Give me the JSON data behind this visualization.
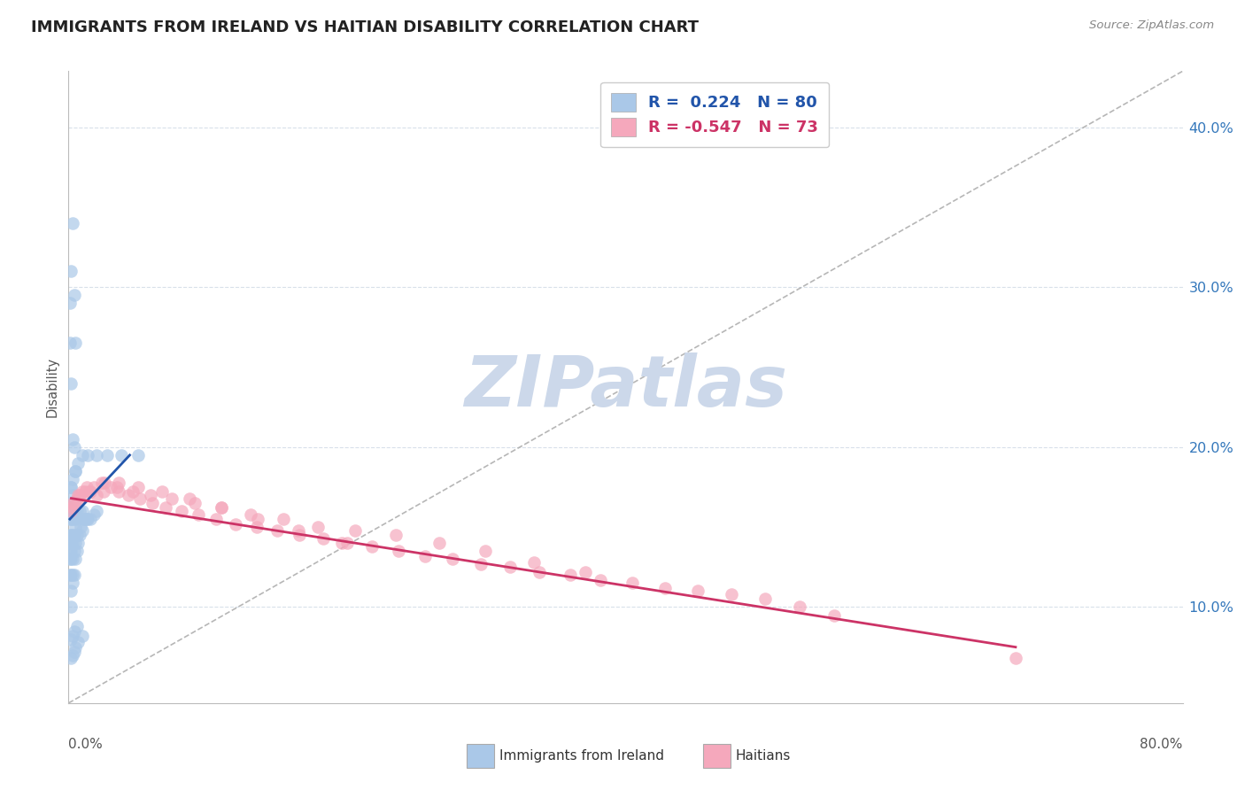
{
  "title": "IMMIGRANTS FROM IRELAND VS HAITIAN DISABILITY CORRELATION CHART",
  "source": "Source: ZipAtlas.com",
  "ylabel": "Disability",
  "xlim": [
    0.0,
    0.8
  ],
  "ylim": [
    0.04,
    0.435
  ],
  "yticks": [
    0.1,
    0.2,
    0.3,
    0.4
  ],
  "ytick_labels": [
    "10.0%",
    "20.0%",
    "30.0%",
    "40.0%"
  ],
  "xtick_left_label": "0.0%",
  "xtick_right_label": "80.0%",
  "ireland_R": 0.224,
  "ireland_N": 80,
  "haitian_R": -0.547,
  "haitian_N": 73,
  "ireland_color": "#aac8e8",
  "haitian_color": "#f5a8bc",
  "ireland_line_color": "#2255aa",
  "haitian_line_color": "#cc3366",
  "ref_line_color": "#aaaaaa",
  "watermark_color": "#ccd8ea",
  "background_color": "#ffffff",
  "grid_color": "#d8e0ea",
  "legend_label_ireland": "R =  0.224   N = 80",
  "legend_label_haitian": "R = -0.547   N = 73",
  "bottom_legend_ireland": "Immigrants from Ireland",
  "bottom_legend_haitian": "Haitians",
  "ireland_x": [
    0.001,
    0.001,
    0.001,
    0.001,
    0.001,
    0.001,
    0.002,
    0.002,
    0.002,
    0.002,
    0.002,
    0.002,
    0.002,
    0.002,
    0.002,
    0.002,
    0.003,
    0.003,
    0.003,
    0.003,
    0.003,
    0.003,
    0.003,
    0.003,
    0.004,
    0.004,
    0.004,
    0.004,
    0.004,
    0.005,
    0.005,
    0.005,
    0.005,
    0.006,
    0.006,
    0.006,
    0.007,
    0.007,
    0.008,
    0.008,
    0.009,
    0.01,
    0.01,
    0.011,
    0.012,
    0.013,
    0.014,
    0.016,
    0.018,
    0.02,
    0.001,
    0.001,
    0.002,
    0.002,
    0.003,
    0.003,
    0.004,
    0.004,
    0.005,
    0.005,
    0.002,
    0.003,
    0.004,
    0.006,
    0.002,
    0.003,
    0.004,
    0.005,
    0.007,
    0.01,
    0.002,
    0.003,
    0.005,
    0.007,
    0.01,
    0.014,
    0.02,
    0.028,
    0.038,
    0.05
  ],
  "ireland_y": [
    0.12,
    0.13,
    0.135,
    0.14,
    0.145,
    0.155,
    0.1,
    0.11,
    0.12,
    0.13,
    0.135,
    0.14,
    0.145,
    0.155,
    0.165,
    0.175,
    0.115,
    0.12,
    0.13,
    0.14,
    0.145,
    0.155,
    0.16,
    0.17,
    0.12,
    0.135,
    0.145,
    0.155,
    0.165,
    0.13,
    0.14,
    0.15,
    0.16,
    0.135,
    0.145,
    0.16,
    0.14,
    0.155,
    0.145,
    0.16,
    0.15,
    0.148,
    0.16,
    0.155,
    0.155,
    0.155,
    0.155,
    0.155,
    0.158,
    0.16,
    0.265,
    0.29,
    0.24,
    0.31,
    0.205,
    0.34,
    0.2,
    0.295,
    0.185,
    0.265,
    0.08,
    0.082,
    0.085,
    0.088,
    0.068,
    0.07,
    0.072,
    0.075,
    0.078,
    0.082,
    0.175,
    0.18,
    0.185,
    0.19,
    0.195,
    0.195,
    0.195,
    0.195,
    0.195,
    0.195
  ],
  "haitian_x": [
    0.002,
    0.004,
    0.006,
    0.008,
    0.01,
    0.013,
    0.016,
    0.02,
    0.025,
    0.03,
    0.036,
    0.043,
    0.051,
    0.06,
    0.07,
    0.081,
    0.093,
    0.106,
    0.12,
    0.135,
    0.15,
    0.166,
    0.183,
    0.2,
    0.218,
    0.237,
    0.256,
    0.276,
    0.296,
    0.317,
    0.338,
    0.36,
    0.382,
    0.405,
    0.428,
    0.452,
    0.476,
    0.5,
    0.525,
    0.55,
    0.003,
    0.007,
    0.012,
    0.018,
    0.026,
    0.035,
    0.046,
    0.059,
    0.074,
    0.091,
    0.11,
    0.131,
    0.154,
    0.179,
    0.206,
    0.235,
    0.266,
    0.299,
    0.334,
    0.371,
    0.003,
    0.008,
    0.015,
    0.024,
    0.036,
    0.05,
    0.067,
    0.087,
    0.11,
    0.136,
    0.165,
    0.196,
    0.68
  ],
  "haitian_y": [
    0.16,
    0.165,
    0.168,
    0.17,
    0.172,
    0.175,
    0.172,
    0.17,
    0.172,
    0.175,
    0.172,
    0.17,
    0.168,
    0.165,
    0.162,
    0.16,
    0.158,
    0.155,
    0.152,
    0.15,
    0.148,
    0.145,
    0.143,
    0.14,
    0.138,
    0.135,
    0.132,
    0.13,
    0.127,
    0.125,
    0.122,
    0.12,
    0.117,
    0.115,
    0.112,
    0.11,
    0.108,
    0.105,
    0.1,
    0.095,
    0.165,
    0.17,
    0.172,
    0.175,
    0.178,
    0.175,
    0.172,
    0.17,
    0.168,
    0.165,
    0.162,
    0.158,
    0.155,
    0.15,
    0.148,
    0.145,
    0.14,
    0.135,
    0.128,
    0.122,
    0.162,
    0.168,
    0.172,
    0.178,
    0.178,
    0.175,
    0.172,
    0.168,
    0.162,
    0.155,
    0.148,
    0.14,
    0.068
  ]
}
